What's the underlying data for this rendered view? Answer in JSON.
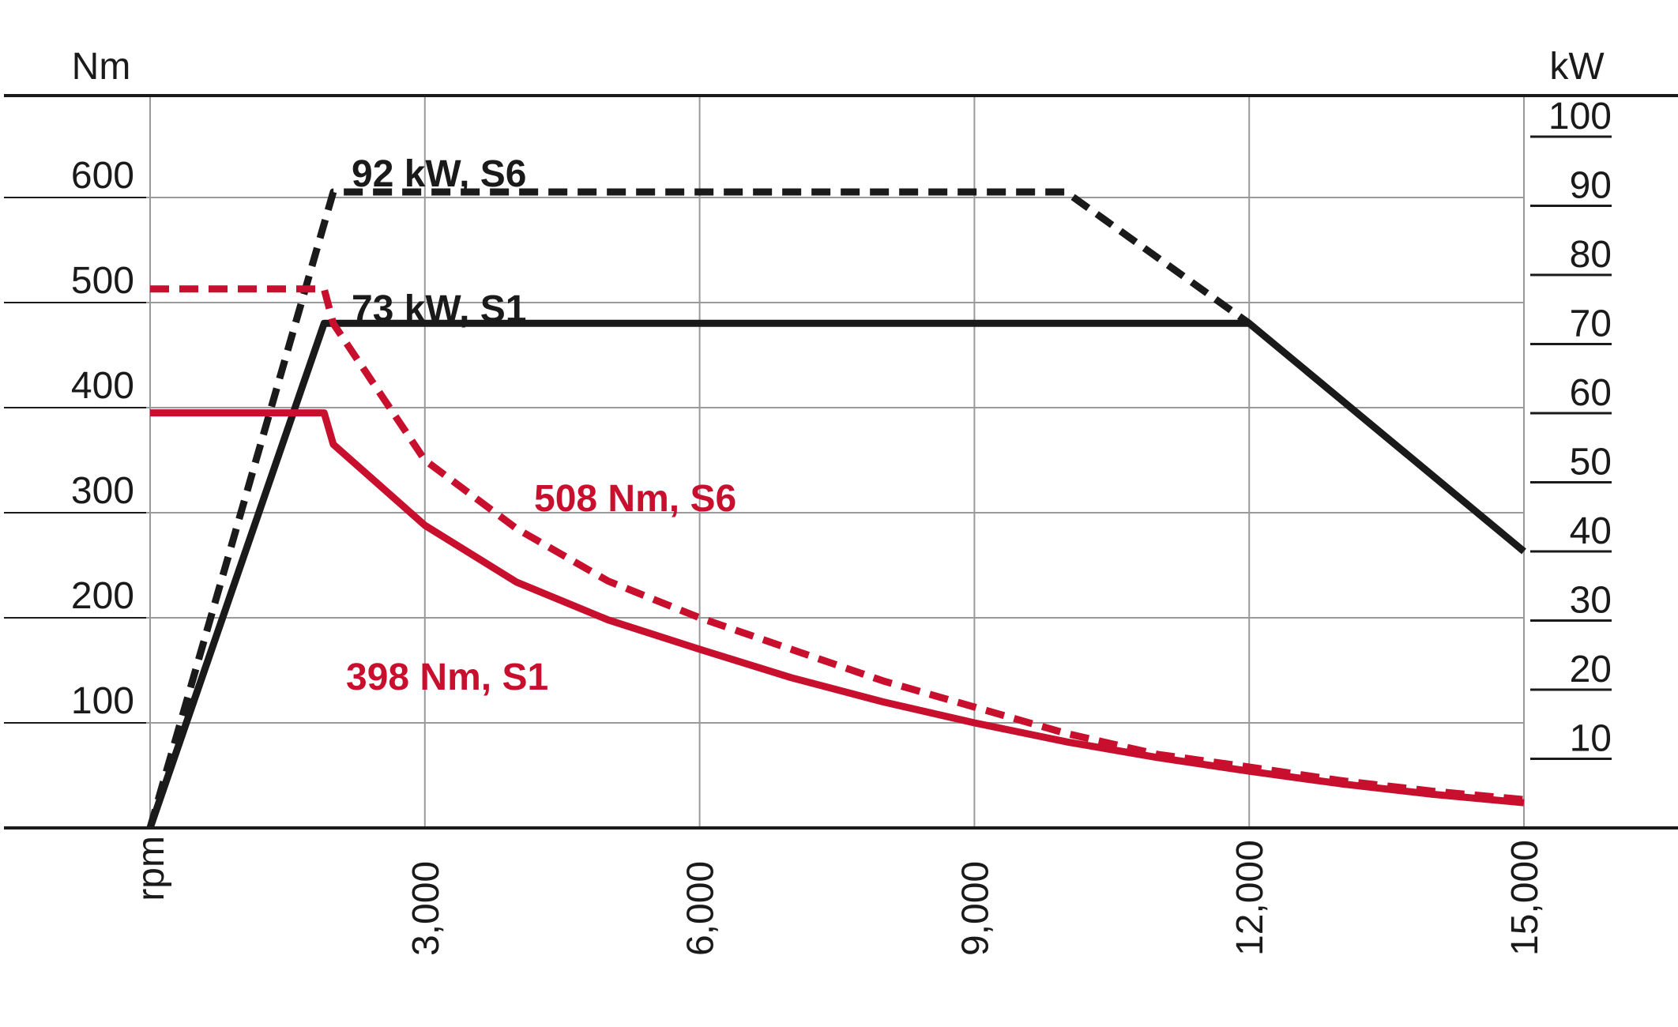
{
  "chart_data": {
    "type": "line",
    "left_axis_label": "Nm",
    "right_axis_label": "kW",
    "x_axis_label": "rpm",
    "xlim": [
      0,
      15000
    ],
    "ylim_left": [
      0,
      700
    ],
    "ylim_right": [
      0,
      100
    ],
    "x_ticks": [
      "3,000",
      "6,000",
      "9,000",
      "12,000",
      "15,000"
    ],
    "x_tick_values": [
      3000,
      6000,
      9000,
      12000,
      15000
    ],
    "y_left_ticks": [
      "100",
      "200",
      "300",
      "400",
      "500",
      "600"
    ],
    "y_left_tick_values": [
      100,
      200,
      300,
      400,
      500,
      600
    ],
    "y_right_ticks": [
      "10",
      "20",
      "30",
      "40",
      "50",
      "60",
      "70",
      "80",
      "90",
      "100"
    ],
    "y_right_tick_values": [
      10,
      20,
      30,
      40,
      50,
      60,
      70,
      80,
      90,
      100
    ],
    "grid": true,
    "colors": {
      "power": "#1a1a1a",
      "torque": "#c8102e",
      "grid": "#9a9a9a"
    },
    "series": [
      {
        "name": "92 kW, S6",
        "axis": "right",
        "color": "#1a1a1a",
        "dash": true,
        "x": [
          0,
          2000,
          10000,
          12000
        ],
        "y": [
          0,
          92,
          92,
          73
        ]
      },
      {
        "name": "73 kW, S1",
        "axis": "right",
        "color": "#1a1a1a",
        "dash": false,
        "x": [
          0,
          1900,
          12000,
          15000
        ],
        "y": [
          0,
          73,
          73,
          40
        ]
      },
      {
        "name": "508 Nm, S6",
        "axis": "left",
        "color": "#c8102e",
        "dash": true,
        "x": [
          0,
          1900,
          2000,
          3000,
          4000,
          5000,
          6000,
          7000,
          8000,
          9000,
          10000,
          11000,
          12000,
          13000,
          14000,
          15000
        ],
        "y": [
          513,
          513,
          480,
          350,
          285,
          235,
          200,
          170,
          140,
          115,
          90,
          70,
          58,
          45,
          35,
          27
        ]
      },
      {
        "name": "398 Nm, S1",
        "axis": "left",
        "color": "#c8102e",
        "dash": false,
        "x": [
          0,
          1900,
          2000,
          3000,
          4000,
          5000,
          6000,
          7000,
          8000,
          9000,
          10000,
          11000,
          12000,
          13000,
          14000,
          15000
        ],
        "y": [
          395,
          395,
          365,
          288,
          234,
          198,
          170,
          143,
          120,
          100,
          82,
          67,
          54,
          42,
          32,
          24
        ]
      }
    ],
    "annotations": [
      {
        "text": "92 kW, S6",
        "series": 0
      },
      {
        "text": "73 kW, S1",
        "series": 1
      },
      {
        "text": "508 Nm, S6",
        "series": 2
      },
      {
        "text": "398 Nm, S1",
        "series": 3
      }
    ]
  }
}
